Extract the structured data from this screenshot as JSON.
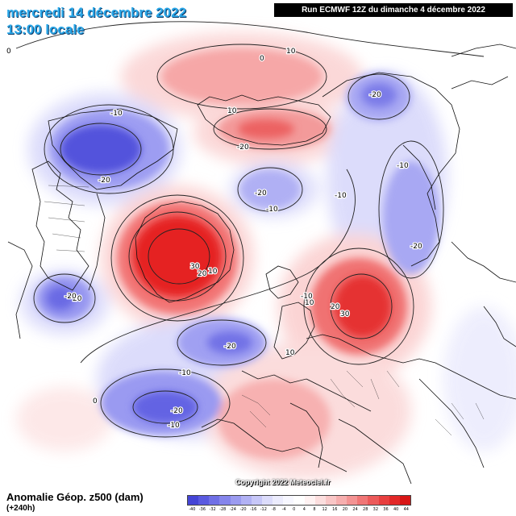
{
  "header": {
    "date_line": "mercredi 14 décembre 2022",
    "time_line": "13:00 locale",
    "run_info": "Run ECMWF 12Z du dimanche 4 décembre 2022"
  },
  "footer": {
    "title": "Anomalie Géop. z500 (dam)",
    "lead": "(+240h)",
    "copyright": "Copyright 2022 Meteociel.fr"
  },
  "legend": {
    "values": [
      "-40",
      "-36",
      "-32",
      "-28",
      "-24",
      "-20",
      "-16",
      "-12",
      "-8",
      "-4",
      "0",
      "4",
      "8",
      "12",
      "16",
      "20",
      "24",
      "28",
      "32",
      "36",
      "40",
      "44"
    ],
    "colors": [
      "#4545d6",
      "#5a5ae0",
      "#6f6fe6",
      "#8585ec",
      "#9b9bf0",
      "#b1b1f4",
      "#c7c7f8",
      "#dcdcfb",
      "#ececfd",
      "#f7f7ff",
      "#ffffff",
      "#fff2f2",
      "#fcdede",
      "#f9c6c6",
      "#f6aeae",
      "#f39393",
      "#f07676",
      "#ec5a5a",
      "#e83f3f",
      "#e22828",
      "#d81616"
    ]
  },
  "map_labels": {
    "l1": "0",
    "l2": "10",
    "l3": "0",
    "l4": "-20",
    "l5": "10",
    "l6": "-10",
    "l7": "-20",
    "l8": "-10",
    "l9": "-20",
    "l10": "-10",
    "l11": "-10",
    "l12": "20",
    "l13": "30",
    "l14": "20",
    "l15": "10",
    "l16": "-20",
    "l17": "10",
    "l18": "-10",
    "l19": "20",
    "l20": "30",
    "l21": "-20",
    "l22": "-10",
    "l23": "10",
    "l24": "-20",
    "l25": "-10",
    "l26": "0"
  },
  "anomaly_colors": {
    "positive_strong": "#e51b1b",
    "positive_mid": "#f47878",
    "positive_weak": "#fad0d0",
    "negative_strong": "#3c3ce0",
    "negative_mid": "#8c8cf0",
    "negative_weak": "#d6d6fb"
  }
}
